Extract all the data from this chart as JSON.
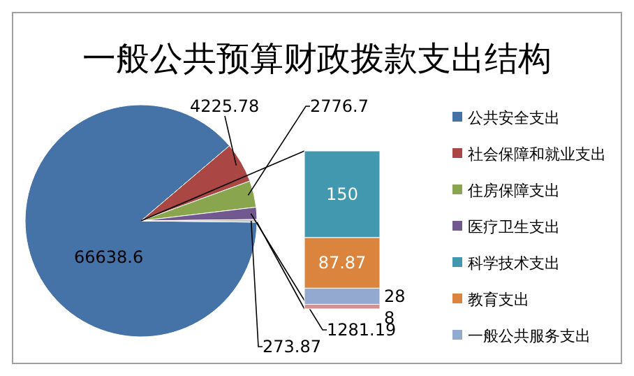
{
  "chart_data": [
    {
      "type": "pie",
      "title": "一般公共预算财政拨款支出结构",
      "categories": [
        "公共安全支出",
        "社会保障和就业支出",
        "住房保障支出",
        "医疗卫生支出",
        null
      ],
      "values": [
        66638.6,
        4225.78,
        2776.7,
        1281.19,
        273.87
      ],
      "colors": [
        "#4572a7",
        "#aa4643",
        "#89a54e",
        "#71588f",
        "#bfbfbf"
      ],
      "data_labels": true,
      "legend": "right"
    },
    {
      "type": "bar",
      "stacked": true,
      "categories": [
        null
      ],
      "series": [
        {
          "color": "#d19392",
          "values": [
            8
          ]
        },
        {
          "name": "一般公共服务支出",
          "color": "#93a9cf",
          "values": [
            28
          ]
        },
        {
          "name": "教育支出",
          "color": "#db843d",
          "values": [
            87.87
          ]
        },
        {
          "name": "科学技术支出",
          "color": "#4198af",
          "values": [
            150
          ]
        }
      ],
      "data_labels": true,
      "legend": "right"
    }
  ]
}
